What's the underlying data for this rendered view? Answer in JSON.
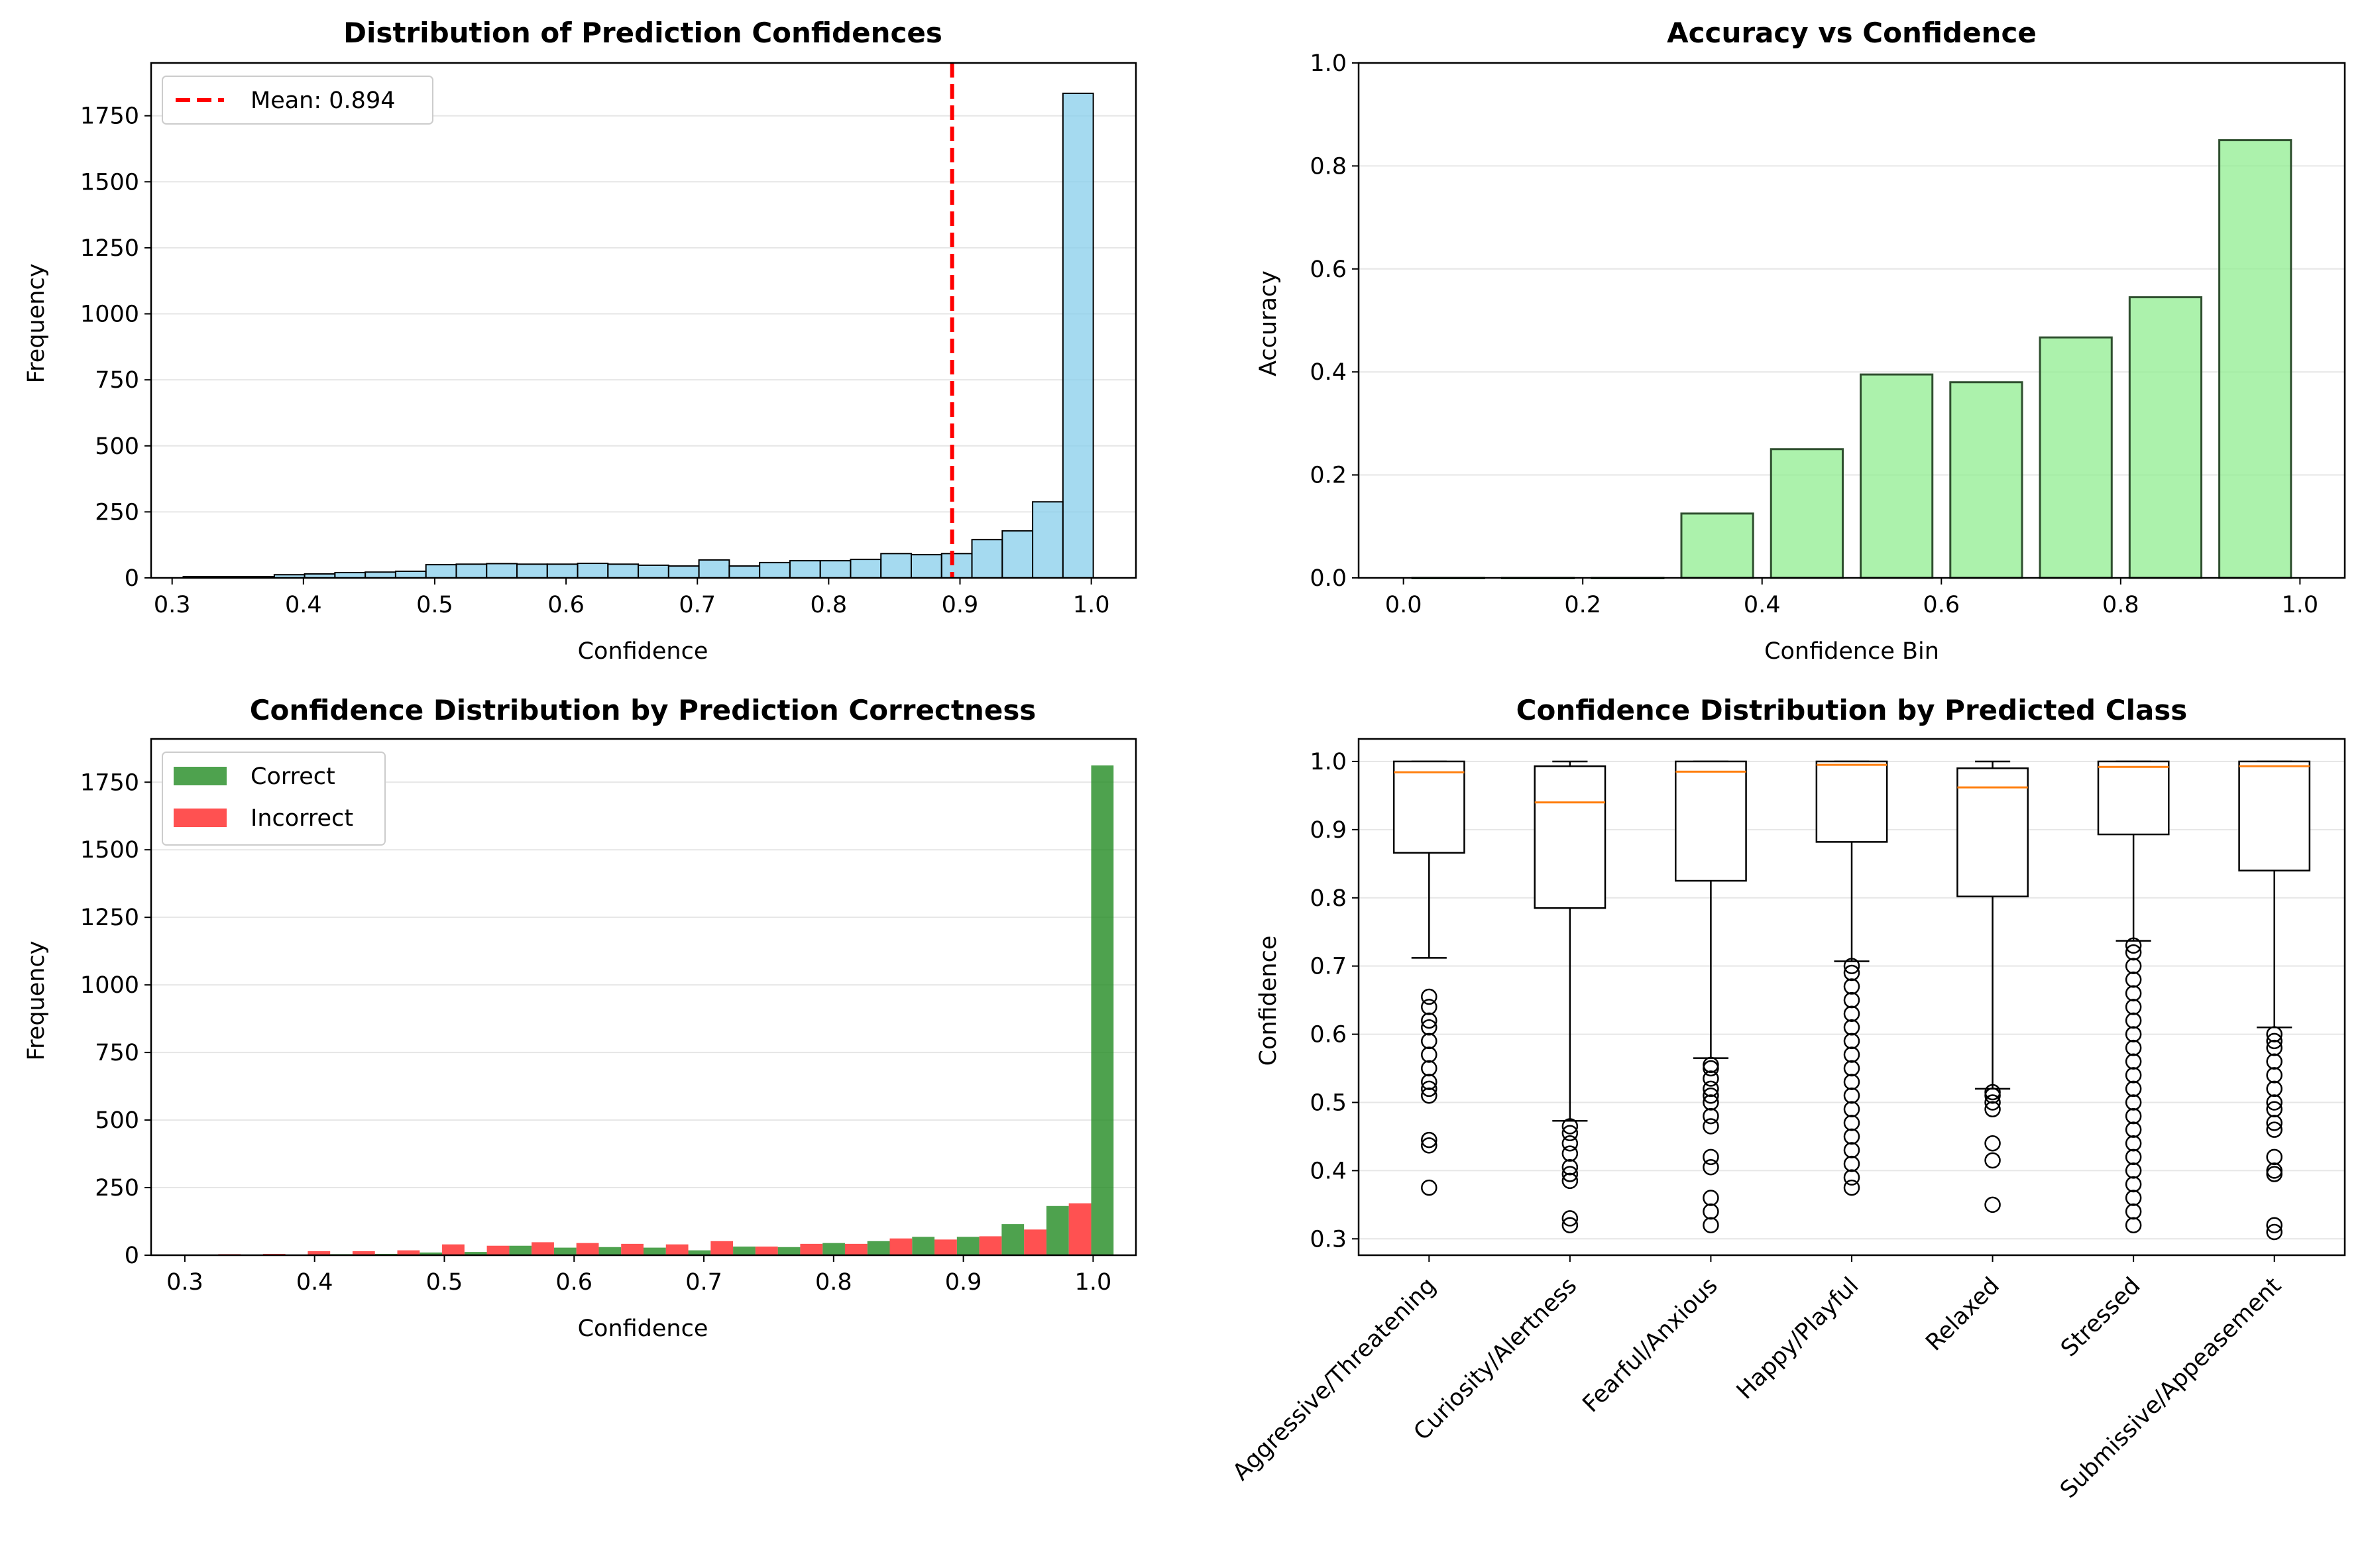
{
  "chart_data": [
    {
      "type": "histogram",
      "title": "Distribution of Prediction Confidences",
      "xlabel": "Confidence",
      "ylabel": "Frequency",
      "xlim": [
        0.284,
        1.034
      ],
      "ylim": [
        0,
        1950
      ],
      "xticks": [
        0.3,
        0.4,
        0.5,
        0.6,
        0.7,
        0.8,
        0.9,
        1.0
      ],
      "yticks": [
        0,
        250,
        500,
        750,
        1000,
        1250,
        1500,
        1750
      ],
      "bin_start": 0.3085,
      "bin_width": 0.0231,
      "values": [
        5,
        5,
        5,
        12,
        15,
        20,
        22,
        25,
        50,
        52,
        54,
        52,
        52,
        55,
        52,
        48,
        45,
        68,
        45,
        58,
        65,
        65,
        70,
        92,
        88,
        92,
        145,
        178,
        288,
        1835
      ],
      "mean_line": {
        "value": 0.894,
        "label": "Mean: 0.894"
      },
      "colors": {
        "bar": "#87CEEB",
        "edge": "#000000",
        "mean": "#FF0000"
      }
    },
    {
      "type": "bar",
      "title": "Accuracy vs Confidence",
      "xlabel": "Confidence Bin",
      "ylabel": "Accuracy",
      "xlim": [
        -0.05,
        1.05
      ],
      "ylim": [
        0,
        1.0
      ],
      "xticks": [
        0.0,
        0.2,
        0.4,
        0.6,
        0.8,
        1.0
      ],
      "yticks": [
        0.0,
        0.2,
        0.4,
        0.6,
        0.8,
        1.0
      ],
      "bin_centers": [
        0.05,
        0.15,
        0.25,
        0.35,
        0.45,
        0.55,
        0.65,
        0.75,
        0.85,
        0.95
      ],
      "bar_width": 0.08,
      "values": [
        0.0,
        0.0,
        0.0,
        0.125,
        0.25,
        0.395,
        0.38,
        0.467,
        0.545,
        0.85
      ],
      "colors": {
        "bar": "#90EE90",
        "edge": "#2F4F2F"
      }
    },
    {
      "type": "histogram",
      "title": "Confidence Distribution by Prediction Correctness",
      "xlabel": "Confidence",
      "ylabel": "Frequency",
      "xlim": [
        0.274,
        1.033
      ],
      "ylim": [
        0,
        1910
      ],
      "xticks": [
        0.3,
        0.4,
        0.5,
        0.6,
        0.7,
        0.8,
        0.9,
        1.0
      ],
      "yticks": [
        0,
        250,
        500,
        750,
        1000,
        1250,
        1500,
        1750
      ],
      "bin_start": 0.3085,
      "bin_width": 0.0345,
      "series": [
        {
          "name": "Correct",
          "color": "#228B22",
          "values": [
            2,
            2,
            2,
            4,
            5,
            10,
            12,
            35,
            28,
            30,
            28,
            18,
            32,
            30,
            45,
            52,
            68,
            68,
            115,
            182,
            1812
          ]
        },
        {
          "name": "Incorrect",
          "color": "#FF3333",
          "values": [
            4,
            5,
            15,
            15,
            18,
            40,
            35,
            48,
            45,
            42,
            40,
            52,
            32,
            42,
            42,
            62,
            58,
            70,
            95,
            192,
            0
          ]
        }
      ]
    },
    {
      "type": "box",
      "title": "Confidence Distribution by Predicted Class",
      "ylabel": "Confidence",
      "ylim": [
        0.276,
        1.033
      ],
      "yticks": [
        0.3,
        0.4,
        0.5,
        0.6,
        0.7,
        0.8,
        0.9,
        1.0
      ],
      "categories": [
        "Aggressive/Threatening",
        "Curiosity/Alertness",
        "Fearful/Anxious",
        "Happy/Playful",
        "Relaxed",
        "Stressed",
        "Submissive/Appeasement"
      ],
      "boxes": [
        {
          "whislo": 0.712,
          "q1": 0.866,
          "med": 0.984,
          "q3": 1.0,
          "whishi": 1.0,
          "fliers": [
            0.375,
            0.437,
            0.445,
            0.51,
            0.52,
            0.53,
            0.55,
            0.57,
            0.59,
            0.61,
            0.62,
            0.64,
            0.655
          ]
        },
        {
          "whislo": 0.473,
          "q1": 0.785,
          "med": 0.94,
          "q3": 0.993,
          "whishi": 1.0,
          "fliers": [
            0.32,
            0.33,
            0.385,
            0.395,
            0.405,
            0.425,
            0.44,
            0.455,
            0.465
          ]
        },
        {
          "whislo": 0.565,
          "q1": 0.825,
          "med": 0.985,
          "q3": 1.0,
          "whishi": 1.0,
          "fliers": [
            0.32,
            0.34,
            0.36,
            0.405,
            0.42,
            0.465,
            0.48,
            0.5,
            0.51,
            0.52,
            0.535,
            0.55,
            0.555
          ]
        },
        {
          "whislo": 0.707,
          "q1": 0.882,
          "med": 0.995,
          "q3": 1.0,
          "whishi": 1.0,
          "fliers": [
            0.375,
            0.39,
            0.41,
            0.43,
            0.45,
            0.47,
            0.49,
            0.51,
            0.53,
            0.55,
            0.57,
            0.59,
            0.61,
            0.63,
            0.65,
            0.67,
            0.69,
            0.7
          ]
        },
        {
          "whislo": 0.52,
          "q1": 0.802,
          "med": 0.962,
          "q3": 0.99,
          "whishi": 1.0,
          "fliers": [
            0.35,
            0.415,
            0.44,
            0.49,
            0.5,
            0.51,
            0.515
          ]
        },
        {
          "whislo": 0.737,
          "q1": 0.893,
          "med": 0.992,
          "q3": 1.0,
          "whishi": 1.0,
          "fliers": [
            0.32,
            0.34,
            0.36,
            0.38,
            0.4,
            0.42,
            0.44,
            0.46,
            0.48,
            0.5,
            0.52,
            0.54,
            0.56,
            0.58,
            0.6,
            0.62,
            0.64,
            0.66,
            0.68,
            0.7,
            0.72,
            0.73
          ]
        },
        {
          "whislo": 0.61,
          "q1": 0.84,
          "med": 0.993,
          "q3": 1.0,
          "whishi": 1.0,
          "fliers": [
            0.31,
            0.32,
            0.395,
            0.4,
            0.42,
            0.46,
            0.47,
            0.49,
            0.5,
            0.52,
            0.54,
            0.56,
            0.58,
            0.59,
            0.6
          ]
        }
      ],
      "colors": {
        "median": "#FF7F0E"
      }
    }
  ]
}
